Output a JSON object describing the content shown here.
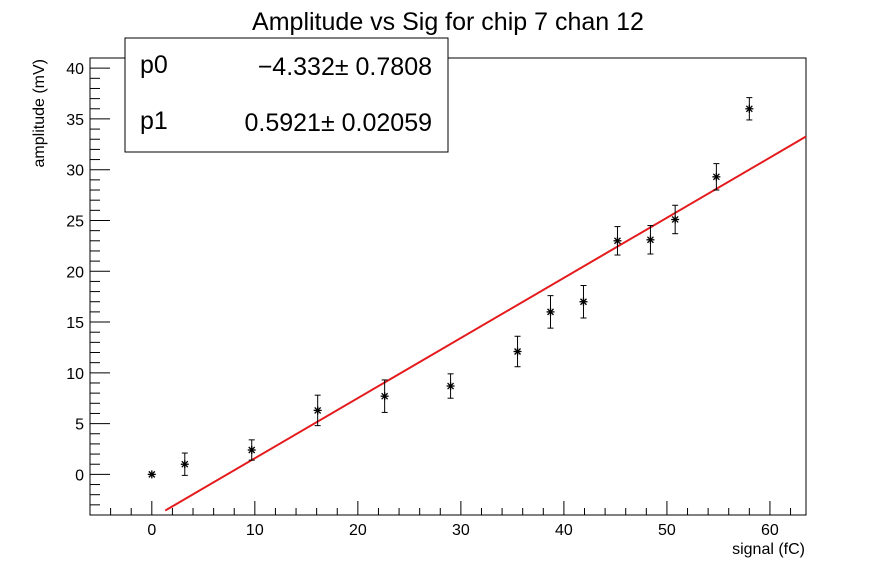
{
  "chart_data": {
    "type": "scatter",
    "title": "Amplitude vs Sig for chip 7 chan 12",
    "xlabel": "signal (fC)",
    "ylabel": "amplitude (mV)",
    "xlim": [
      -6,
      63.5
    ],
    "ylim": [
      -4,
      41
    ],
    "xticks": [
      "0",
      "10",
      "20",
      "30",
      "40",
      "50",
      "60"
    ],
    "yticks": [
      "0",
      "5",
      "10",
      "15",
      "20",
      "25",
      "30",
      "35",
      "40"
    ],
    "grid": false,
    "points": [
      {
        "x": 0.0,
        "y": 0.0,
        "err": 0.0
      },
      {
        "x": 3.2,
        "y": 1.0,
        "err": 1.1
      },
      {
        "x": 9.7,
        "y": 2.4,
        "err": 1.0
      },
      {
        "x": 16.1,
        "y": 6.3,
        "err": 1.5
      },
      {
        "x": 22.6,
        "y": 7.7,
        "err": 1.6
      },
      {
        "x": 29.0,
        "y": 8.7,
        "err": 1.2
      },
      {
        "x": 35.5,
        "y": 12.1,
        "err": 1.5
      },
      {
        "x": 38.7,
        "y": 16.0,
        "err": 1.6
      },
      {
        "x": 41.9,
        "y": 17.0,
        "err": 1.6
      },
      {
        "x": 45.2,
        "y": 23.0,
        "err": 1.4
      },
      {
        "x": 48.4,
        "y": 23.1,
        "err": 1.4
      },
      {
        "x": 50.8,
        "y": 25.1,
        "err": 1.4
      },
      {
        "x": 54.8,
        "y": 29.3,
        "err": 1.3
      },
      {
        "x": 58.0,
        "y": 36.0,
        "err": 1.1
      }
    ],
    "fit": {
      "p0": -4.332,
      "p1": 0.5921,
      "x_range": [
        1.3,
        63.5
      ],
      "color": "#e41a1c"
    },
    "stats": [
      {
        "name": "p0",
        "value": "−4.332± 0.7808"
      },
      {
        "name": "p1",
        "value": "0.5921± 0.02059"
      }
    ]
  }
}
